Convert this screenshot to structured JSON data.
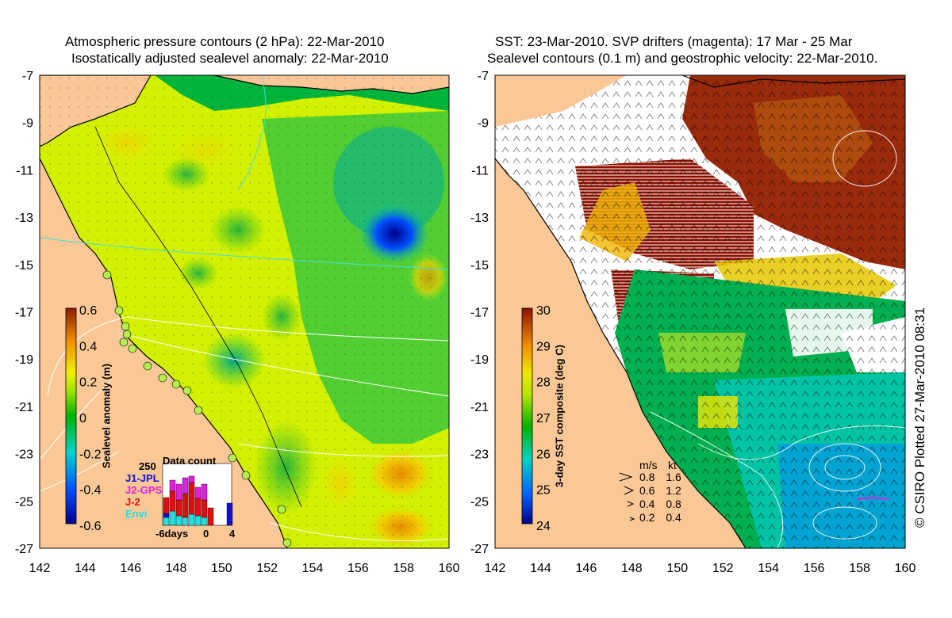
{
  "left_panel": {
    "title_line1": "Atmospheric pressure contours (2 hPa): 22-Mar-2010",
    "title_line2": "Isostatically adjusted sealevel anomaly: 22-Mar-2010",
    "x_ticks": [
      "142",
      "144",
      "146",
      "148",
      "150",
      "152",
      "154",
      "156",
      "158",
      "160"
    ],
    "y_ticks": [
      "-7",
      "-9",
      "-11",
      "-13",
      "-15",
      "-17",
      "-19",
      "-21",
      "-23",
      "-25",
      "-27"
    ],
    "colorbar": {
      "label": "Sealevel anomaly (m)",
      "ticks": [
        "0.6",
        "0.4",
        "0.2",
        "0",
        "-0.2",
        "-0.4",
        "-0.6"
      ]
    },
    "data_count": {
      "title": "Data count",
      "max_label": "250",
      "x_labels": [
        "-6days",
        "0",
        "4"
      ],
      "legend": [
        {
          "label": "J1-JPL",
          "color": "#1010d0"
        },
        {
          "label": "J2-GPS",
          "color": "#e020e0"
        },
        {
          "label": "J-2",
          "color": "#e01010"
        },
        {
          "label": "Envi",
          "color": "#20e0e0"
        }
      ]
    }
  },
  "right_panel": {
    "title_line1": "SST: 23-Mar-2010. SVP drifters (magenta): 17 Mar - 25 Mar",
    "title_line2": "Sealevel contours (0.1 m) and geostrophic velocity: 22-Mar-2010.",
    "x_ticks": [
      "142",
      "144",
      "146",
      "148",
      "150",
      "152",
      "154",
      "156",
      "158",
      "160"
    ],
    "y_ticks": [
      "-7",
      "-9",
      "-11",
      "-13",
      "-15",
      "-17",
      "-19",
      "-21",
      "-23",
      "-25",
      "-27"
    ],
    "colorbar": {
      "label": "3-day SST composite (deg C)",
      "ticks": [
        "30",
        "29",
        "28",
        "27",
        "26",
        "25",
        "24"
      ]
    },
    "velocity_legend": {
      "header_ms": "m/s",
      "header_kt": "kt",
      "rows": [
        {
          "ms": "0.8",
          "kt": "1.6"
        },
        {
          "ms": "0.6",
          "kt": "1.2"
        },
        {
          "ms": "0.4",
          "kt": "0.8"
        },
        {
          "ms": "0.2",
          "kt": "0.4"
        }
      ]
    }
  },
  "credit": "© CSIRO Plotted 27-Mar-2010 08:31",
  "colors": {
    "land": "#fac896",
    "frame": "#000000"
  }
}
